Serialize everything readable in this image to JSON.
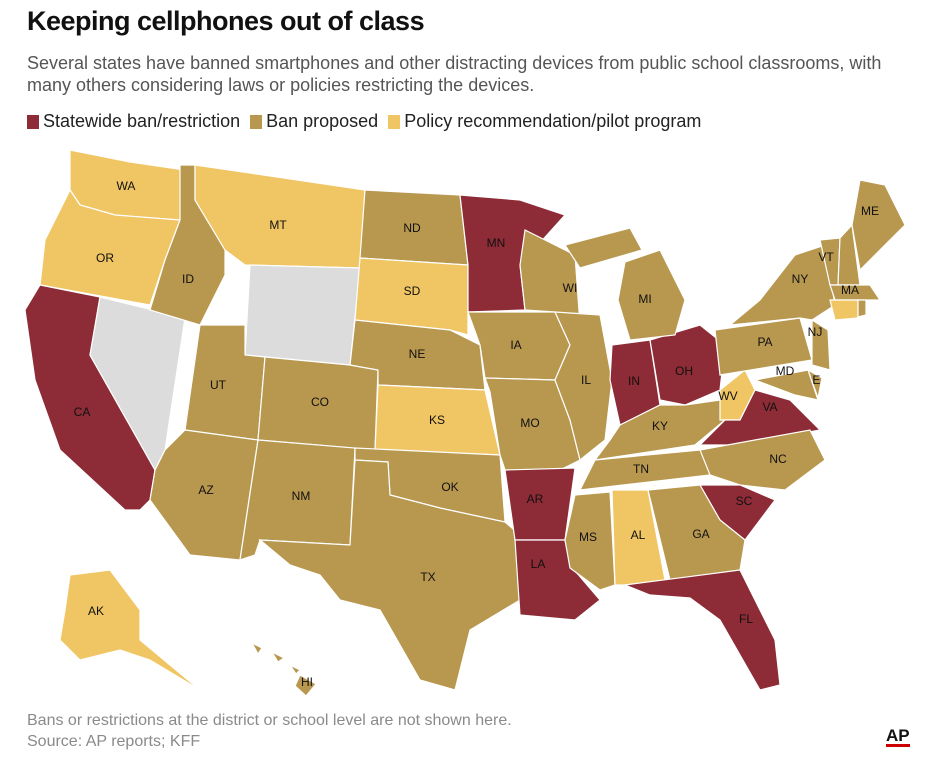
{
  "header": {
    "title": "Keeping cellphones out of class",
    "subtitle": "Several states have banned smartphones and other distracting devices from public school classrooms, with many others considering laws or policies restricting the devices."
  },
  "legend": [
    {
      "label": "Statewide ban/restriction",
      "color": "#8d2b36"
    },
    {
      "label": "Ban proposed",
      "color": "#b8974f"
    },
    {
      "label": "Policy recommendation/pilot program",
      "color": "#f0c563"
    }
  ],
  "unshaded_color": "#dcdcdc",
  "states": [
    {
      "label": "WA",
      "group": 2
    },
    {
      "label": "OR",
      "group": 2
    },
    {
      "label": "CA",
      "group": 0
    },
    {
      "label": null,
      "group": null
    },
    {
      "label": "ID",
      "group": 1
    },
    {
      "label": "MT",
      "group": 2
    },
    {
      "label": null,
      "group": null
    },
    {
      "label": "UT",
      "group": 1
    },
    {
      "label": "AZ",
      "group": 1
    },
    {
      "label": "CO",
      "group": 1
    },
    {
      "label": "NM",
      "group": 1
    },
    {
      "label": "ND",
      "group": 1
    },
    {
      "label": "SD",
      "group": 2
    },
    {
      "label": "NE",
      "group": 1
    },
    {
      "label": "KS",
      "group": 2
    },
    {
      "label": "OK",
      "group": 1
    },
    {
      "label": "TX",
      "group": 1
    },
    {
      "label": "MN",
      "group": 0
    },
    {
      "label": "IA",
      "group": 1
    },
    {
      "label": "WI",
      "group": 1
    },
    {
      "label": "MO",
      "group": 1
    },
    {
      "label": "AR",
      "group": 0
    },
    {
      "label": "LA",
      "group": 0
    },
    {
      "label": "MS",
      "group": 1
    },
    {
      "label": "AL",
      "group": 2
    },
    {
      "label": "IL",
      "group": 1
    },
    {
      "label": "IN",
      "group": 0
    },
    {
      "label": "OH",
      "group": 0
    },
    {
      "label": "MI",
      "group": 1
    },
    {
      "label": "KY",
      "group": 1
    },
    {
      "label": "TN",
      "group": 1
    },
    {
      "label": "WV",
      "group": 2
    },
    {
      "label": "VA",
      "group": 0
    },
    {
      "label": "NC",
      "group": 1
    },
    {
      "label": "SC",
      "group": 0
    },
    {
      "label": "GA",
      "group": 1
    },
    {
      "label": "FL",
      "group": 0
    },
    {
      "label": "PA",
      "group": 1
    },
    {
      "label": "NY",
      "group": 1
    },
    {
      "label": "NJ",
      "group": 1
    },
    {
      "label": "DE",
      "group": 1
    },
    {
      "label": "MD",
      "group": 1
    },
    {
      "label": "VT",
      "group": 1
    },
    {
      "label": null,
      "group": 1
    },
    {
      "label": "MA",
      "group": 1
    },
    {
      "label": null,
      "group": 2
    },
    {
      "label": null,
      "group": 1
    },
    {
      "label": "ME",
      "group": 1
    },
    {
      "label": "AK",
      "group": 2
    },
    {
      "label": "HI",
      "group": 1
    }
  ],
  "footer": {
    "note": "Bans or restrictions at the district or school level are not shown here.",
    "source": "Source: AP reports; KFF",
    "logo": "AP"
  }
}
